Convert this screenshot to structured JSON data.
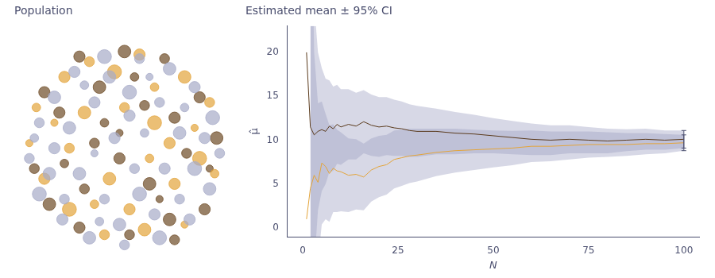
{
  "chart_data": [
    {
      "type": "bubble",
      "title": "Population",
      "tick_labels": false,
      "grid": false,
      "xlim": [
        -1.1,
        1.1
      ],
      "ylim": [
        -1.2,
        1.2
      ],
      "series": [
        {
          "color": "#a7abc8",
          "x": [
            -0.85,
            -0.7,
            -0.5,
            -0.2,
            0.15,
            0.45,
            0.7,
            0.88,
            0.95,
            0.85,
            0.65,
            0.35,
            0.0,
            -0.35,
            -0.62,
            -0.85,
            -0.95,
            -0.55,
            -0.3,
            0.05,
            0.35,
            0.55,
            0.4,
            0.15,
            -0.2,
            -0.45,
            -0.1,
            0.2,
            -0.3,
            0.7,
            -0.7,
            0.25,
            -0.05,
            0.55,
            -0.4,
            0.8,
            -0.75,
            0.1,
            -0.15,
            0.6,
            -0.6,
            0.3,
            -0.9,
            0.05,
            -0.25
          ],
          "y": [
            0.25,
            0.5,
            0.75,
            0.9,
            0.88,
            0.78,
            0.6,
            0.3,
            -0.05,
            -0.4,
            -0.7,
            -0.88,
            -0.95,
            -0.88,
            -0.7,
            -0.45,
            -0.1,
            0.2,
            0.45,
            0.55,
            0.45,
            0.15,
            -0.2,
            -0.45,
            -0.5,
            -0.25,
            0.1,
            0.15,
            -0.05,
            -0.2,
            0.0,
            0.7,
            -0.75,
            -0.5,
            0.62,
            0.1,
            -0.25,
            -0.2,
            0.7,
            0.4,
            -0.5,
            -0.65,
            0.1,
            0.32,
            -0.72
          ],
          "sizes": [
            5,
            7,
            6,
            8,
            5,
            7,
            6,
            8,
            5,
            7,
            6,
            8,
            5,
            7,
            6,
            8,
            5,
            7,
            6,
            8,
            5,
            7,
            6,
            8,
            5,
            7,
            6,
            4,
            3,
            8,
            6,
            3,
            7,
            5,
            4,
            6,
            7,
            5,
            7,
            4,
            5,
            6,
            4,
            6,
            4
          ]
        },
        {
          "color": "#e3a43a",
          "x": [
            -0.6,
            -0.1,
            0.3,
            0.6,
            0.85,
            0.75,
            0.5,
            0.2,
            -0.2,
            -0.55,
            -0.8,
            -0.88,
            -0.4,
            0.0,
            0.3,
            0.25,
            -0.15,
            -0.55,
            0.6,
            -0.35,
            0.9,
            0.05,
            -0.7,
            0.45,
            -0.3,
            0.15,
            -0.95,
            0.7
          ],
          "y": [
            0.7,
            0.75,
            0.6,
            0.7,
            0.45,
            -0.1,
            -0.35,
            -0.8,
            -0.85,
            -0.6,
            -0.3,
            0.4,
            0.35,
            0.4,
            0.25,
            -0.1,
            -0.3,
            0.0,
            -0.75,
            0.85,
            -0.25,
            -0.6,
            0.25,
            0.05,
            -0.55,
            0.92,
            0.05,
            0.2
          ],
          "sizes": [
            6,
            8,
            4,
            7,
            5,
            8,
            6,
            7,
            5,
            8,
            6,
            4,
            7,
            5,
            8,
            4,
            7,
            5,
            3,
            5,
            4,
            6,
            3,
            6,
            4,
            6,
            3,
            3
          ]
        },
        {
          "color": "#6e4c27",
          "x": [
            -0.45,
            0.0,
            0.4,
            0.75,
            0.92,
            0.8,
            0.45,
            0.05,
            -0.45,
            -0.75,
            -0.9,
            -0.8,
            -0.25,
            0.2,
            0.5,
            0.62,
            0.25,
            -0.05,
            -0.4,
            -0.65,
            -0.2,
            0.35,
            0.1,
            -0.6,
            0.5,
            -0.3,
            0.85,
            -0.05
          ],
          "y": [
            0.9,
            0.95,
            0.88,
            0.5,
            0.1,
            -0.6,
            -0.7,
            -0.85,
            -0.78,
            -0.55,
            -0.2,
            0.55,
            0.6,
            0.42,
            0.3,
            -0.05,
            -0.35,
            -0.1,
            -0.4,
            0.35,
            0.25,
            -0.5,
            0.7,
            -0.15,
            -0.9,
            0.05,
            -0.2,
            0.15
          ],
          "sizes": [
            6,
            7,
            5,
            6,
            7,
            6,
            7,
            5,
            6,
            7,
            5,
            6,
            7,
            5,
            6,
            5,
            7,
            6,
            5,
            6,
            4,
            3,
            4,
            4,
            5,
            5,
            3,
            3
          ]
        }
      ]
    },
    {
      "type": "line",
      "title": "Estimated mean ± 95% CI",
      "x_label": "N",
      "y_label": "μ̂",
      "grid": false,
      "x": [
        1,
        2,
        3,
        4,
        5,
        6,
        7,
        8,
        9,
        10,
        12,
        14,
        16,
        18,
        20,
        22,
        24,
        26,
        28,
        30,
        35,
        40,
        45,
        50,
        55,
        60,
        65,
        70,
        75,
        80,
        85,
        90,
        95,
        100
      ],
      "xlim": [
        -4,
        104
      ],
      "xticks": [
        0,
        25,
        50,
        75,
        100
      ],
      "ylim": [
        -1,
        23
      ],
      "yticks": [
        0,
        5,
        10,
        15,
        20
      ],
      "series": [
        {
          "color": "#5a3a1c",
          "values": [
            20,
            11.5,
            10.6,
            11.0,
            11.2,
            11.0,
            11.6,
            11.3,
            11.8,
            11.5,
            11.8,
            11.6,
            12.1,
            11.7,
            11.5,
            11.6,
            11.4,
            11.3,
            11.1,
            11.0,
            11.0,
            10.8,
            10.7,
            10.5,
            10.3,
            10.1,
            10.0,
            10.1,
            10.0,
            9.9,
            10.0,
            10.1,
            10.0,
            10.1
          ],
          "ci_lower": [
            null,
            -33.5,
            -4.4,
            2.0,
            4.2,
            5.0,
            6.4,
            6.5,
            7.3,
            7.2,
            7.8,
            7.8,
            8.5,
            8.2,
            8.1,
            8.3,
            8.2,
            8.2,
            8.1,
            8.1,
            8.4,
            8.4,
            8.5,
            8.5,
            8.4,
            8.3,
            8.3,
            8.5,
            8.5,
            8.5,
            8.75,
            8.9,
            8.9,
            9.1
          ],
          "ci_upper": [
            null,
            56.5,
            25.6,
            20.0,
            18.2,
            17.0,
            16.8,
            16.1,
            16.3,
            15.8,
            15.8,
            15.4,
            15.7,
            15.2,
            14.9,
            14.9,
            14.6,
            14.4,
            14.1,
            13.9,
            13.6,
            13.2,
            12.9,
            12.5,
            12.2,
            11.9,
            11.7,
            11.7,
            11.5,
            11.3,
            11.25,
            11.3,
            11.1,
            11.1
          ]
        },
        {
          "color": "#e3a43a",
          "values": [
            1.0,
            4.5,
            6.0,
            5.2,
            7.4,
            7.0,
            6.2,
            6.8,
            6.5,
            6.4,
            6.0,
            6.1,
            5.8,
            6.6,
            7.0,
            7.2,
            7.8,
            8.0,
            8.2,
            8.3,
            8.6,
            8.8,
            8.9,
            9.0,
            9.1,
            9.3,
            9.3,
            9.4,
            9.5,
            9.5,
            9.5,
            9.6,
            9.6,
            9.7
          ],
          "ci_lower": [
            null,
            -35.5,
            -8.0,
            -3.8,
            0.4,
            1.0,
            0.7,
            1.8,
            1.8,
            1.9,
            1.8,
            2.1,
            2.0,
            3.0,
            3.5,
            3.8,
            4.5,
            4.8,
            5.1,
            5.3,
            5.9,
            6.3,
            6.6,
            6.9,
            7.15,
            7.5,
            7.6,
            7.8,
            8.0,
            8.1,
            8.2,
            8.4,
            8.5,
            8.8
          ],
          "ci_upper": [
            null,
            44.5,
            20.0,
            14.2,
            14.4,
            13.0,
            11.7,
            11.8,
            11.2,
            10.9,
            10.2,
            10.1,
            9.6,
            10.2,
            10.5,
            10.6,
            11.1,
            11.2,
            11.3,
            11.3,
            11.3,
            11.3,
            11.2,
            11.1,
            11.05,
            11.1,
            11.0,
            11.0,
            11.0,
            10.9,
            10.8,
            10.8,
            10.7,
            10.6
          ]
        }
      ]
    }
  ]
}
